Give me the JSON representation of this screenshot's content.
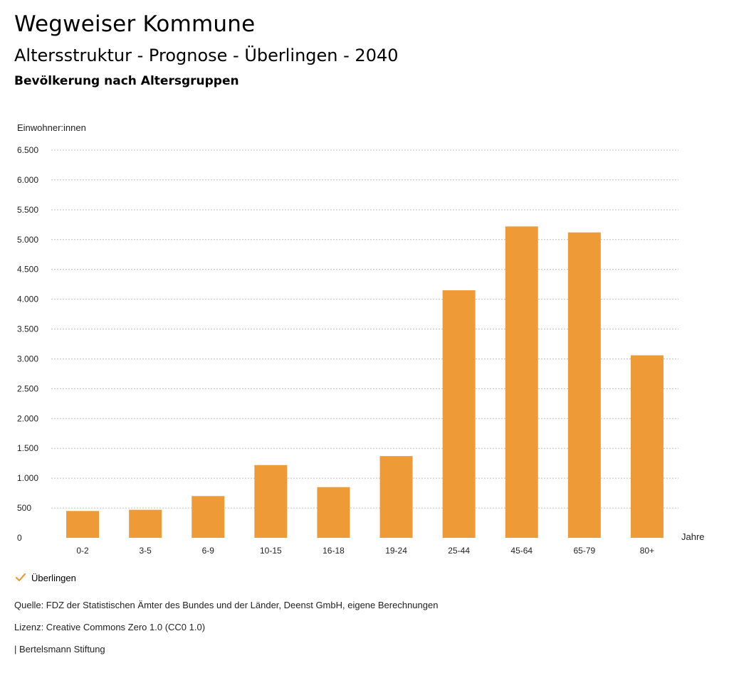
{
  "header": {
    "title": "Wegweiser Kommune",
    "subtitle": "Altersstruktur - Prognose - Überlingen - 2040",
    "chart_title": "Bevölkerung nach Altersgruppen"
  },
  "chart_data": {
    "type": "bar",
    "title": "Bevölkerung nach Altersgruppen",
    "ylabel": "Einwohner:innen",
    "xlabel": "Jahre",
    "categories": [
      "0-2",
      "3-5",
      "6-9",
      "10-15",
      "16-18",
      "19-24",
      "25-44",
      "45-64",
      "65-79",
      "80+"
    ],
    "series": [
      {
        "name": "Überlingen",
        "values": [
          450,
          470,
          700,
          1220,
          850,
          1370,
          4150,
          5220,
          5120,
          3060
        ]
      }
    ],
    "ylim": [
      0,
      6500
    ],
    "yticks": [
      0,
      500,
      1000,
      1500,
      2000,
      2500,
      3000,
      3500,
      4000,
      4500,
      5000,
      5500,
      6000,
      6500
    ],
    "ytick_labels": [
      "0",
      "500",
      "1.000",
      "1.500",
      "2.000",
      "2.500",
      "3.000",
      "3.500",
      "4.000",
      "4.500",
      "5.000",
      "5.500",
      "6.000",
      "6.500"
    ],
    "grid": true,
    "bar_color": "#ed9a37",
    "grid_color": "#bdbdbd"
  },
  "legend": {
    "label": "Überlingen",
    "check_color": "#ed9a37"
  },
  "footer": {
    "source": "Quelle: FDZ der Statistischen Ämter des Bundes und der Länder, Deenst GmbH, eigene Berechnungen",
    "license": "Lizenz: Creative Commons Zero 1.0 (CC0 1.0)",
    "publisher": "| Bertelsmann Stiftung"
  }
}
